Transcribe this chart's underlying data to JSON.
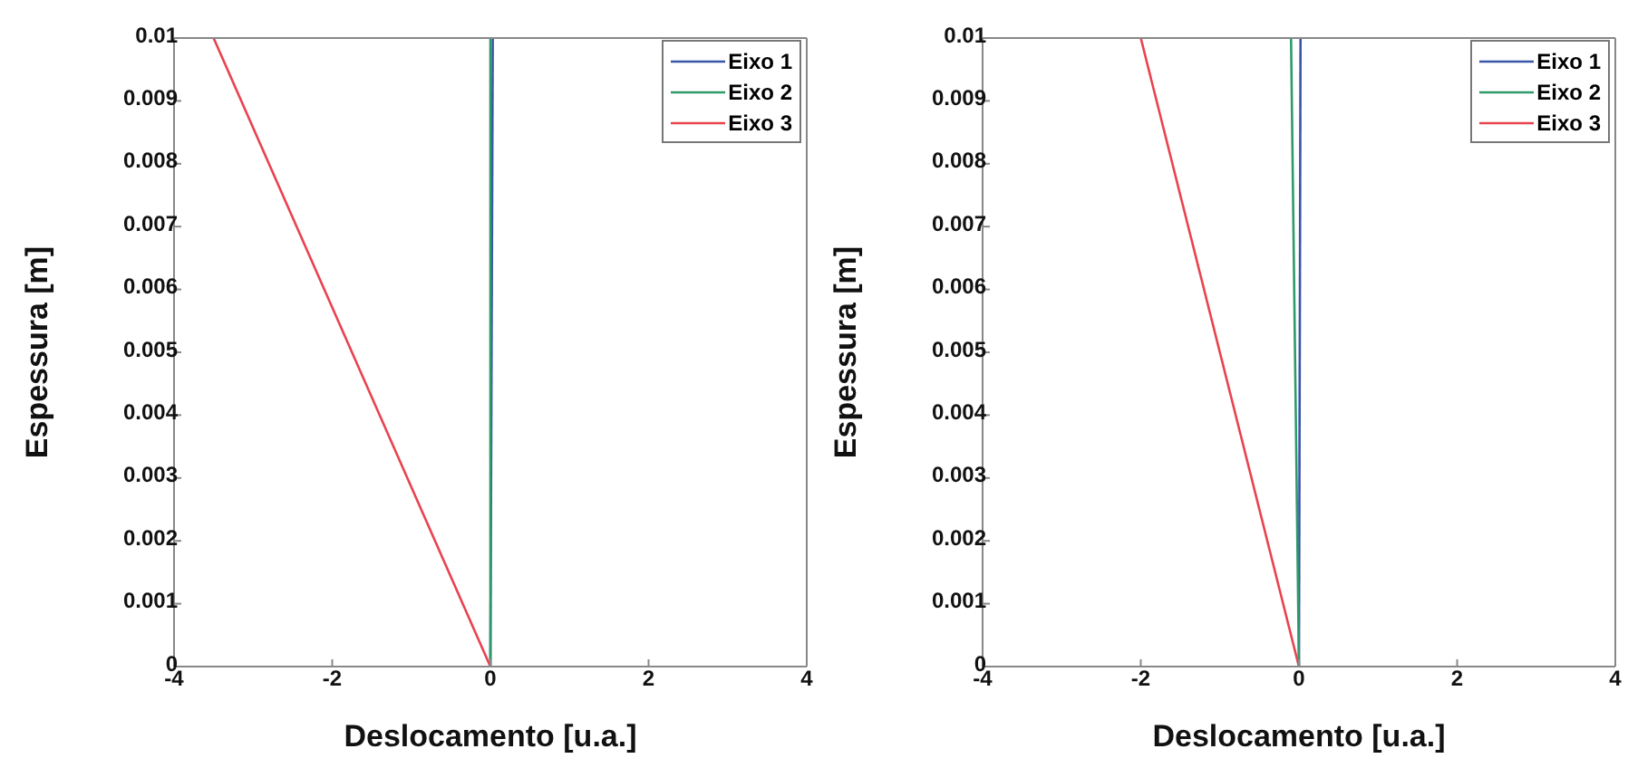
{
  "chart_data": [
    {
      "type": "line",
      "xlabel": "Deslocamento [u.a.]",
      "ylabel": "Espessura [m]",
      "xlim": [
        -4,
        4
      ],
      "xticks": [
        -4,
        -2,
        0,
        2,
        4
      ],
      "ylim": [
        0,
        0.01
      ],
      "yticks": [
        0,
        0.001,
        0.002,
        0.003,
        0.004,
        0.005,
        0.006,
        0.007,
        0.008,
        0.009,
        0.01
      ],
      "legend": "top right",
      "marker": "none",
      "line_style": "solid",
      "series": [
        {
          "name": "Eixo 1",
          "color": "#3a55a8",
          "x": [
            0,
            0.03
          ],
          "values": [
            0,
            0.01
          ]
        },
        {
          "name": "Eixo 2",
          "color": "#2e9a6a",
          "x": [
            0,
            0
          ],
          "values": [
            0,
            0.01
          ]
        },
        {
          "name": "Eixo 3",
          "color": "#e8434f",
          "x": [
            0,
            -3.5
          ],
          "values": [
            0,
            0.01
          ]
        }
      ]
    },
    {
      "type": "line",
      "xlabel": "Deslocamento [u.a.]",
      "ylabel": "Espessura [m]",
      "xlim": [
        -4,
        4
      ],
      "xticks": [
        -4,
        -2,
        0,
        2,
        4
      ],
      "ylim": [
        0,
        0.01
      ],
      "yticks": [
        0,
        0.001,
        0.002,
        0.003,
        0.004,
        0.005,
        0.006,
        0.007,
        0.008,
        0.009,
        0.01
      ],
      "legend": "top right",
      "marker": "none",
      "line_style": "solid",
      "series": [
        {
          "name": "Eixo 1",
          "color": "#3a55a8",
          "x": [
            0,
            0.02
          ],
          "values": [
            0,
            0.01
          ]
        },
        {
          "name": "Eixo 2",
          "color": "#2e9a6a",
          "x": [
            0,
            -0.02,
            -0.1
          ],
          "values": [
            0,
            0.002,
            0.01
          ]
        },
        {
          "name": "Eixo 3",
          "color": "#e8434f",
          "x": [
            0,
            -2
          ],
          "values": [
            0,
            0.01
          ]
        }
      ]
    }
  ]
}
